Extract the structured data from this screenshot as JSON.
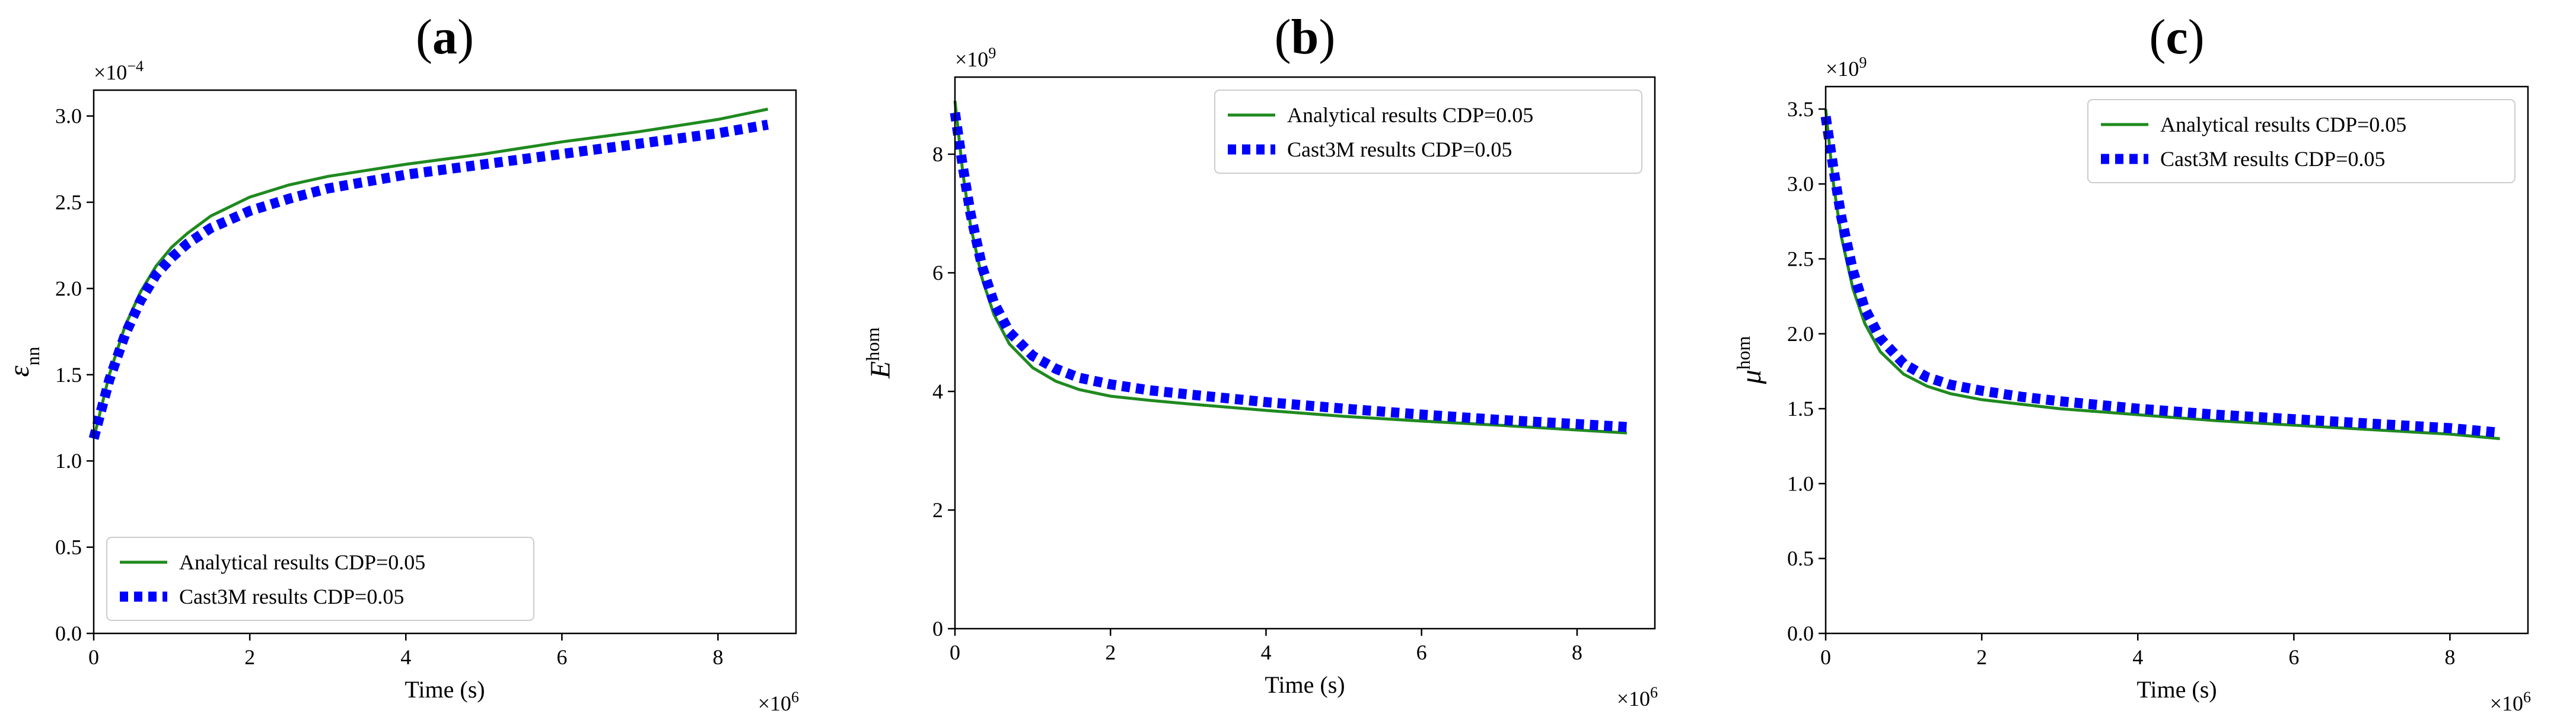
{
  "colors": {
    "analytical": "#1f8a1f",
    "cast3m": "#0000ff",
    "axis": "#000000"
  },
  "chart_data": [
    {
      "type": "line",
      "panel_label": "a",
      "title": "(a)",
      "xlabel": "Time (s)",
      "ylabel_main": "ε",
      "ylabel_sub": "nn",
      "x_exponent": "×10^6",
      "y_exponent": "×10^-4",
      "xlim": [
        0,
        9.0
      ],
      "ylim": [
        0.0,
        3.15
      ],
      "xticks": [
        0,
        2,
        4,
        6,
        8
      ],
      "xtick_labels": [
        "0",
        "2",
        "4",
        "6",
        "8"
      ],
      "yticks": [
        0.0,
        0.5,
        1.0,
        1.5,
        2.0,
        2.5,
        3.0
      ],
      "ytick_labels": [
        "0.0",
        "0.5",
        "1.0",
        "1.5",
        "2.0",
        "2.5",
        "3.0"
      ],
      "legend_position": "bottom-left",
      "legend": [
        "Analytical results CDP=0.05",
        "Cast3M results CDP=0.05"
      ],
      "series": [
        {
          "name": "Analytical results CDP=0.05",
          "style": "solid",
          "x": [
            0,
            0.2,
            0.4,
            0.6,
            0.8,
            1.0,
            1.2,
            1.5,
            2.0,
            2.5,
            3.0,
            4.0,
            5.0,
            6.0,
            7.0,
            8.0,
            8.64
          ],
          "y": [
            1.13,
            1.5,
            1.78,
            1.98,
            2.13,
            2.24,
            2.32,
            2.42,
            2.53,
            2.6,
            2.65,
            2.72,
            2.78,
            2.85,
            2.91,
            2.98,
            3.04
          ]
        },
        {
          "name": "Cast3M results CDP=0.05",
          "style": "dotted",
          "x": [
            0,
            0.2,
            0.4,
            0.6,
            0.8,
            1.0,
            1.2,
            1.5,
            2.0,
            2.5,
            3.0,
            4.0,
            5.0,
            6.0,
            7.0,
            8.0,
            8.64
          ],
          "y": [
            1.13,
            1.47,
            1.73,
            1.93,
            2.08,
            2.18,
            2.26,
            2.35,
            2.45,
            2.52,
            2.58,
            2.66,
            2.72,
            2.78,
            2.84,
            2.9,
            2.95
          ]
        }
      ]
    },
    {
      "type": "line",
      "panel_label": "b",
      "title": "(b)",
      "xlabel": "Time (s)",
      "ylabel_main": "E",
      "ylabel_sub": "hom",
      "x_exponent": "×10^6",
      "y_exponent": "×10^9",
      "xlim": [
        0,
        9.0
      ],
      "ylim": [
        0,
        9.3
      ],
      "xticks": [
        0,
        2,
        4,
        6,
        8
      ],
      "xtick_labels": [
        "0",
        "2",
        "4",
        "6",
        "8"
      ],
      "yticks": [
        0,
        2,
        4,
        6,
        8
      ],
      "ytick_labels": [
        "0",
        "2",
        "4",
        "6",
        "8"
      ],
      "legend_position": "top-right",
      "legend": [
        "Analytical results CDP=0.05",
        "Cast3M results CDP=0.05"
      ],
      "series": [
        {
          "name": "Analytical results CDP=0.05",
          "style": "solid",
          "x": [
            0,
            0.1,
            0.2,
            0.35,
            0.5,
            0.7,
            1.0,
            1.3,
            1.6,
            2.0,
            2.5,
            3.0,
            4.0,
            5.0,
            6.0,
            7.0,
            8.0,
            8.64
          ],
          "y": [
            8.9,
            7.7,
            6.8,
            5.9,
            5.3,
            4.8,
            4.4,
            4.17,
            4.03,
            3.92,
            3.85,
            3.79,
            3.68,
            3.58,
            3.5,
            3.43,
            3.35,
            3.3
          ]
        },
        {
          "name": "Cast3M results CDP=0.05",
          "style": "dotted",
          "x": [
            0,
            0.1,
            0.2,
            0.35,
            0.5,
            0.7,
            1.0,
            1.3,
            1.6,
            2.0,
            2.5,
            3.0,
            4.0,
            5.0,
            6.0,
            7.0,
            8.0,
            8.64
          ],
          "y": [
            8.7,
            7.8,
            7.0,
            6.1,
            5.5,
            5.0,
            4.6,
            4.38,
            4.23,
            4.12,
            4.02,
            3.95,
            3.82,
            3.71,
            3.61,
            3.52,
            3.45,
            3.4
          ]
        }
      ]
    },
    {
      "type": "line",
      "panel_label": "c",
      "title": "(c)",
      "xlabel": "Time (s)",
      "ylabel_main": "μ",
      "ylabel_sub": "hom",
      "x_exponent": "×10^6",
      "y_exponent": "×10^9",
      "xlim": [
        0,
        9.0
      ],
      "ylim": [
        0.0,
        3.65
      ],
      "xticks": [
        0,
        2,
        4,
        6,
        8
      ],
      "xtick_labels": [
        "0",
        "2",
        "4",
        "6",
        "8"
      ],
      "yticks": [
        0.0,
        0.5,
        1.0,
        1.5,
        2.0,
        2.5,
        3.0,
        3.5
      ],
      "ytick_labels": [
        "0.0",
        "0.5",
        "1.0",
        "1.5",
        "2.0",
        "2.5",
        "3.0",
        "3.5"
      ],
      "legend_position": "top-right",
      "legend": [
        "Analytical results CDP=0.05",
        "Cast3M results CDP=0.05"
      ],
      "series": [
        {
          "name": "Analytical results CDP=0.05",
          "style": "solid",
          "x": [
            0,
            0.1,
            0.2,
            0.35,
            0.5,
            0.7,
            1.0,
            1.3,
            1.6,
            2.0,
            2.5,
            3.0,
            4.0,
            5.0,
            6.0,
            7.0,
            8.0,
            8.64
          ],
          "y": [
            3.5,
            3.0,
            2.65,
            2.3,
            2.07,
            1.88,
            1.73,
            1.65,
            1.6,
            1.56,
            1.53,
            1.5,
            1.46,
            1.42,
            1.39,
            1.36,
            1.33,
            1.3
          ]
        },
        {
          "name": "Cast3M results CDP=0.05",
          "style": "dotted",
          "x": [
            0,
            0.1,
            0.2,
            0.35,
            0.5,
            0.7,
            1.0,
            1.3,
            1.6,
            2.0,
            2.5,
            3.0,
            4.0,
            5.0,
            6.0,
            7.0,
            8.0,
            8.64
          ],
          "y": [
            3.45,
            3.1,
            2.78,
            2.42,
            2.17,
            1.97,
            1.8,
            1.71,
            1.66,
            1.62,
            1.58,
            1.55,
            1.5,
            1.46,
            1.43,
            1.4,
            1.37,
            1.34
          ]
        }
      ]
    }
  ]
}
